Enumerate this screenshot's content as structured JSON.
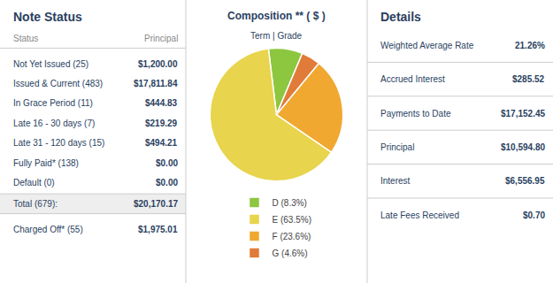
{
  "chart_data": [
    {
      "type": "table",
      "title": "Note Status",
      "columns": [
        "Status",
        "Principal"
      ],
      "rows": [
        [
          "Not Yet Issued (25)",
          "$1,200.00"
        ],
        [
          "Issued & Current (483)",
          "$17,811.84"
        ],
        [
          "In Grace Period (11)",
          "$444.83"
        ],
        [
          "Late 16 - 30 days (7)",
          "$219.29"
        ],
        [
          "Late 31 - 120 days (15)",
          "$494.21"
        ],
        [
          "Fully Paid* (138)",
          "$0.00"
        ],
        [
          "Default (0)",
          "$0.00"
        ]
      ],
      "total": [
        "Total (679):",
        "$20,170.17"
      ],
      "extra_rows": [
        [
          "Charged Off* (55)",
          "$1,975.01"
        ]
      ]
    },
    {
      "type": "pie",
      "title": "Composition ** ( $ )",
      "subtitle": "Term | Grade",
      "categories": [
        "D",
        "E",
        "F",
        "G"
      ],
      "values": [
        8.3,
        63.5,
        23.6,
        4.6
      ],
      "value_labels": [
        "(8.3%)",
        "(63.5%)",
        "(23.6%)",
        "(4.6%)"
      ],
      "colors": [
        "#8dc63f",
        "#e8d44d",
        "#f0a830",
        "#e07b39"
      ],
      "legend": "bottom"
    },
    {
      "type": "table",
      "title": "Details",
      "rows": [
        [
          "Weighted Average Rate",
          "21.26%"
        ],
        [
          "Accrued Interest",
          "$285.52"
        ],
        [
          "Payments to Date",
          "$17,152.45"
        ],
        [
          "Principal",
          "$10,594.80"
        ],
        [
          "Interest",
          "$6,556.95"
        ],
        [
          "Late Fees Received",
          "$0.70"
        ]
      ]
    }
  ]
}
